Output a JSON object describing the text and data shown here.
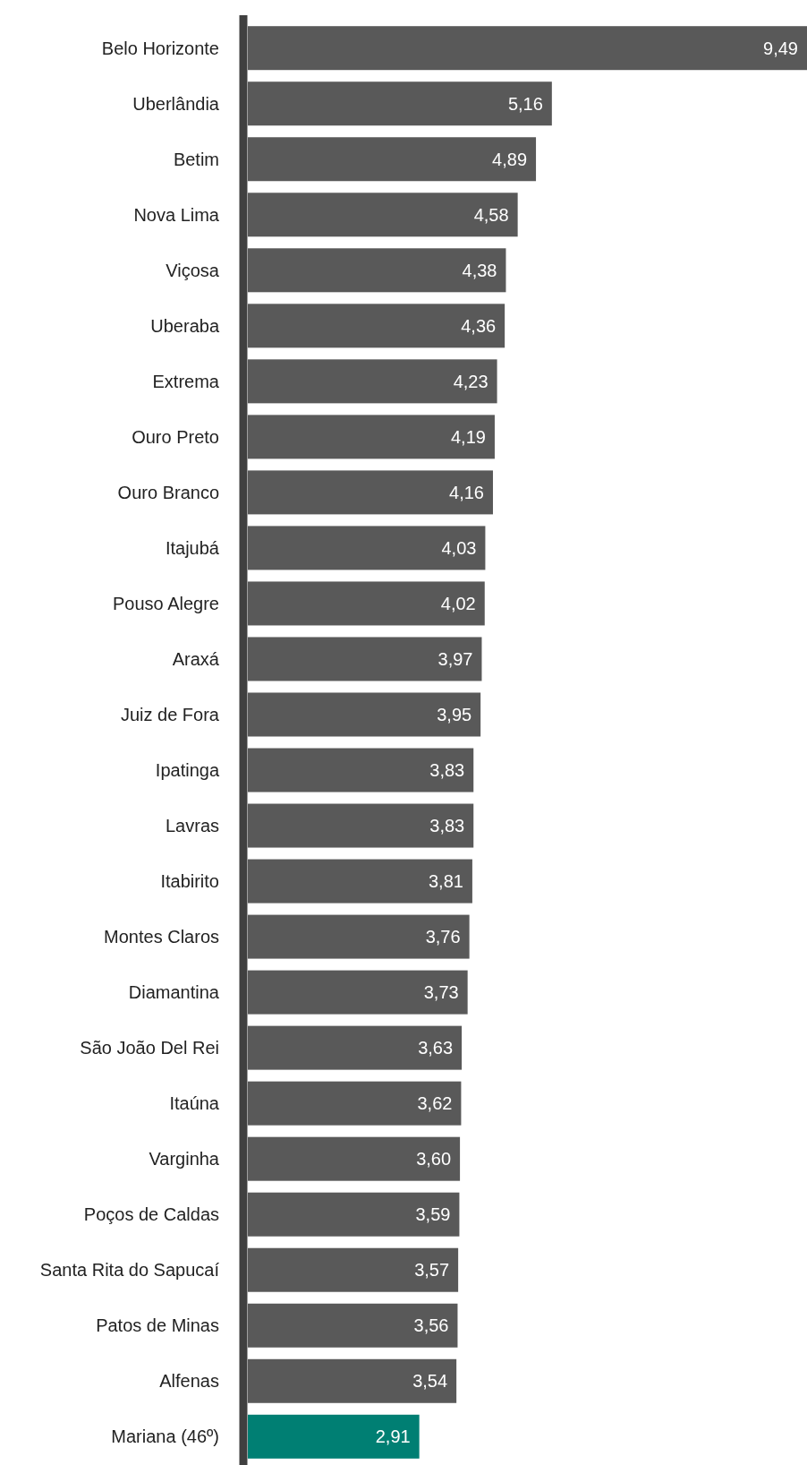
{
  "chart_data": {
    "type": "bar",
    "orientation": "horizontal",
    "categories": [
      "Belo Horizonte",
      "Uberlândia",
      "Betim",
      "Nova Lima",
      "Viçosa",
      "Uberaba",
      "Extrema",
      "Ouro Preto",
      "Ouro Branco",
      "Itajubá",
      "Pouso Alegre",
      "Araxá",
      "Juiz de Fora",
      "Ipatinga",
      "Lavras",
      "Itabirito",
      "Montes Claros",
      "Diamantina",
      "São João Del Rei",
      "Itaúna",
      "Varginha",
      "Poços de Caldas",
      "Santa Rita do Sapucaí",
      "Patos de Minas",
      "Alfenas",
      "Mariana (46º)"
    ],
    "values": [
      9.49,
      5.16,
      4.89,
      4.58,
      4.38,
      4.36,
      4.23,
      4.19,
      4.16,
      4.03,
      4.02,
      3.97,
      3.95,
      3.83,
      3.83,
      3.81,
      3.76,
      3.73,
      3.63,
      3.62,
      3.6,
      3.59,
      3.57,
      3.56,
      3.54,
      2.91
    ],
    "value_labels": [
      "9,49",
      "5,16",
      "4,89",
      "4,58",
      "4,38",
      "4,36",
      "4,23",
      "4,19",
      "4,16",
      "4,03",
      "4,02",
      "3,97",
      "3,95",
      "3,83",
      "3,83",
      "3,81",
      "3,76",
      "3,73",
      "3,63",
      "3,62",
      "3,60",
      "3,59",
      "3,57",
      "3,56",
      "3,54",
      "2,91"
    ],
    "colors": [
      "#595959",
      "#595959",
      "#595959",
      "#595959",
      "#595959",
      "#595959",
      "#595959",
      "#595959",
      "#595959",
      "#595959",
      "#595959",
      "#595959",
      "#595959",
      "#595959",
      "#595959",
      "#595959",
      "#595959",
      "#595959",
      "#595959",
      "#595959",
      "#595959",
      "#595959",
      "#595959",
      "#595959",
      "#595959",
      "#007f73"
    ],
    "grid": false
  }
}
